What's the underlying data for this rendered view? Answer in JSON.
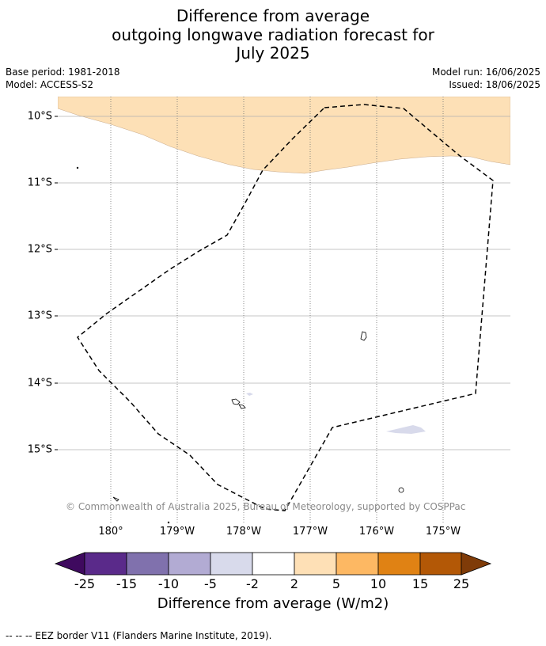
{
  "title": {
    "line1": "Difference from average",
    "line2": "outgoing longwave radiation forecast for",
    "line3": "July 2025"
  },
  "meta": {
    "base_period": "Base period: 1981-2018",
    "model": "Model: ACCESS-S2",
    "model_run": "Model run: 16/06/2025",
    "issued": "Issued: 18/06/2025"
  },
  "map": {
    "lat_labels": [
      "10°S",
      "11°S",
      "12°S",
      "13°S",
      "14°S",
      "15°S"
    ],
    "lon_labels": [
      "180°",
      "179°W",
      "178°W",
      "177°W",
      "176°W",
      "175°W"
    ],
    "copyright": "© Commonwealth of Australia 2025, Bureau of Meteorology, supported by COSPPac",
    "anomaly_fill_color": "#fde0b6",
    "eez_line_color": "#000000"
  },
  "colorbar": {
    "tick_labels": [
      "-25",
      "-15",
      "-10",
      "-5",
      "-2",
      "2",
      "5",
      "10",
      "15",
      "25"
    ],
    "colors": [
      "#3f0a5f",
      "#5a2a8a",
      "#8071ad",
      "#b2abd3",
      "#d8daeb",
      "#ffffff",
      "#fee0b6",
      "#fdb863",
      "#e08214",
      "#b35806",
      "#7f3b08"
    ],
    "title": "Difference from average (W/m2)"
  },
  "footnote": "--  --  -- EEZ border V11 (Flanders Marine Institute, 2019)."
}
